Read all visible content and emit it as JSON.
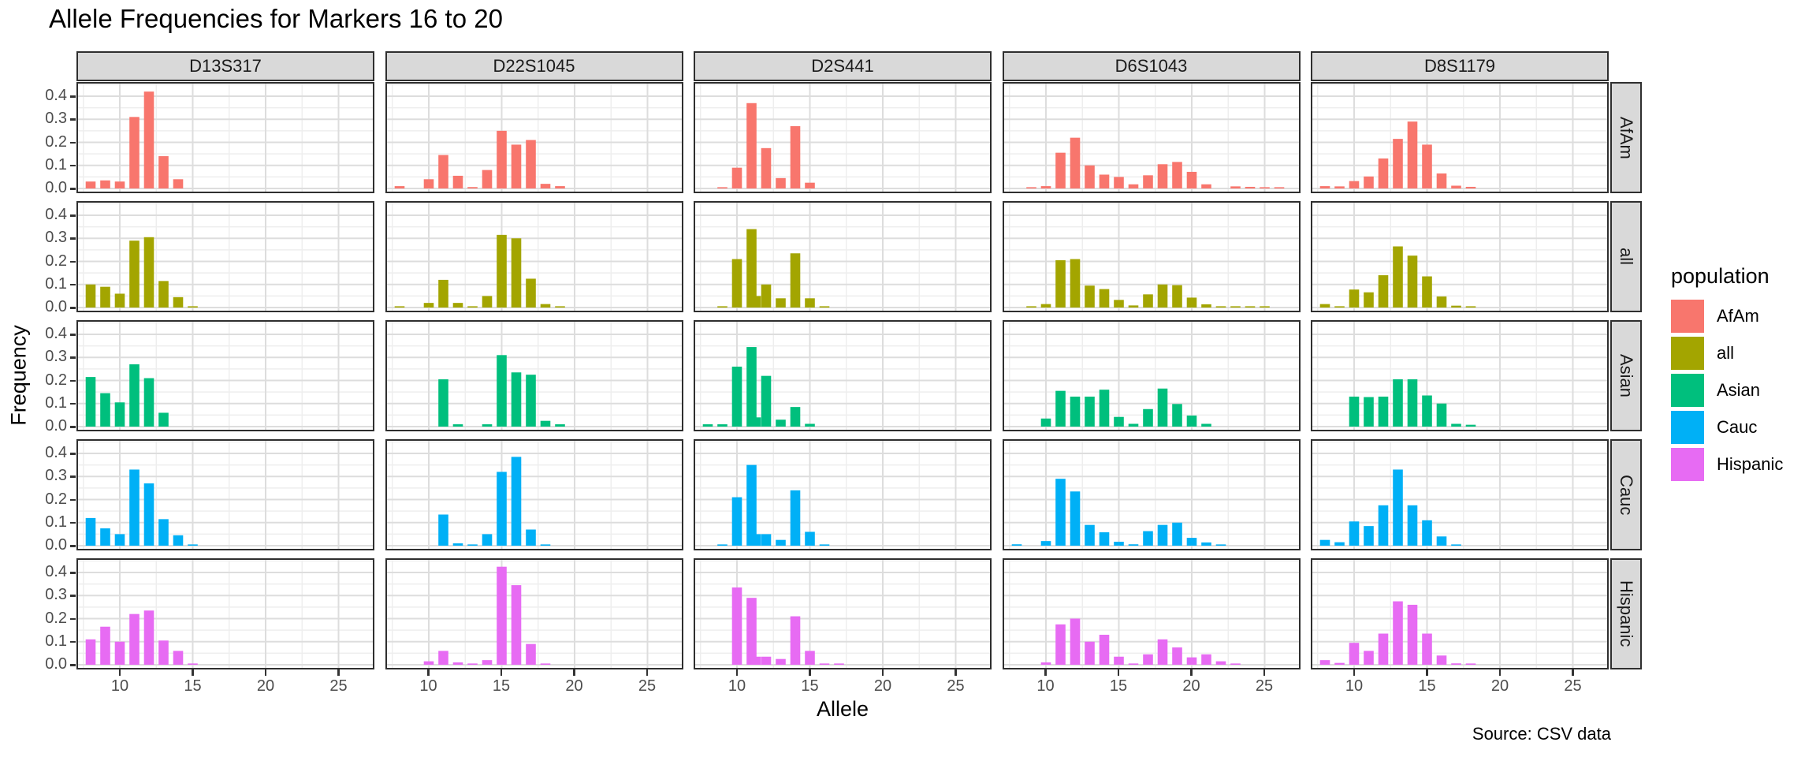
{
  "title": "Allele Frequencies for Markers 16 to 20",
  "axes": {
    "x_title": "Allele",
    "y_title": "Frequency",
    "x_tick_labels": [
      "10",
      "15",
      "20",
      "25"
    ],
    "y_tick_labels": [
      "0.0",
      "0.1",
      "0.2",
      "0.3",
      "0.4"
    ]
  },
  "caption": "Source: CSV data",
  "legend": {
    "title": "population",
    "entries": [
      {
        "label": "AfAm",
        "color": "#F8766D"
      },
      {
        "label": "all",
        "color": "#A3A500"
      },
      {
        "label": "Asian",
        "color": "#00BF7D"
      },
      {
        "label": "Cauc",
        "color": "#00B0F6"
      },
      {
        "label": "Hispanic",
        "color": "#E76BF3"
      }
    ]
  },
  "chart_data": {
    "type": "bar",
    "title": "Allele Frequencies for Markers 16 to 20",
    "xlabel": "Allele",
    "ylabel": "Frequency",
    "caption": "Source: CSV data",
    "facet_columns": [
      "D13S317",
      "D22S1045",
      "D2S441",
      "D6S1043",
      "D8S1179"
    ],
    "facet_rows": [
      "AfAm",
      "all",
      "Asian",
      "Cauc",
      "Hispanic"
    ],
    "x_major_ticks": [
      10,
      15,
      20,
      25
    ],
    "x_minor_ticks": [
      7.5,
      12.5,
      17.5,
      22.5
    ],
    "y_major_ticks": [
      0,
      0.1,
      0.2,
      0.3,
      0.4
    ],
    "y_minor_ticks": [
      0.05,
      0.15,
      0.25,
      0.35,
      0.45
    ],
    "xlim": [
      7.0,
      27.4
    ],
    "ylim": [
      -0.02,
      0.46
    ],
    "grid": true,
    "legend_position": "right",
    "panels": {
      "D13S317": {
        "AfAm": {
          "x": [
            8,
            9,
            10,
            11,
            12,
            13,
            14
          ],
          "y": [
            0.03,
            0.035,
            0.03,
            0.31,
            0.42,
            0.14,
            0.04
          ]
        },
        "all": {
          "x": [
            8,
            9,
            10,
            11,
            12,
            13,
            14,
            15
          ],
          "y": [
            0.1,
            0.09,
            0.06,
            0.29,
            0.305,
            0.115,
            0.045,
            0.005
          ]
        },
        "Asian": {
          "x": [
            8,
            9,
            10,
            11,
            12,
            13
          ],
          "y": [
            0.215,
            0.145,
            0.105,
            0.27,
            0.21,
            0.06
          ]
        },
        "Cauc": {
          "x": [
            8,
            9,
            10,
            11,
            12,
            13,
            14,
            15
          ],
          "y": [
            0.12,
            0.075,
            0.05,
            0.33,
            0.27,
            0.115,
            0.045,
            0.004
          ]
        },
        "Hispanic": {
          "x": [
            8,
            9,
            10,
            11,
            12,
            13,
            14,
            15
          ],
          "y": [
            0.11,
            0.165,
            0.1,
            0.22,
            0.235,
            0.105,
            0.06,
            0.005
          ]
        }
      },
      "D22S1045": {
        "AfAm": {
          "x": [
            8,
            10,
            11,
            12,
            13,
            14,
            15,
            16,
            17,
            18,
            19
          ],
          "y": [
            0.01,
            0.04,
            0.145,
            0.055,
            0.006,
            0.08,
            0.25,
            0.19,
            0.21,
            0.02,
            0.01
          ]
        },
        "all": {
          "x": [
            8,
            10,
            11,
            12,
            13,
            14,
            15,
            16,
            17,
            18,
            19
          ],
          "y": [
            0.005,
            0.02,
            0.12,
            0.02,
            0.005,
            0.05,
            0.315,
            0.3,
            0.125,
            0.015,
            0.005
          ]
        },
        "Asian": {
          "x": [
            11,
            12,
            14,
            15,
            16,
            17,
            18,
            19
          ],
          "y": [
            0.205,
            0.01,
            0.01,
            0.31,
            0.235,
            0.225,
            0.025,
            0.01
          ]
        },
        "Cauc": {
          "x": [
            11,
            12,
            13,
            14,
            15,
            16,
            17,
            18
          ],
          "y": [
            0.135,
            0.01,
            0.005,
            0.05,
            0.32,
            0.385,
            0.07,
            0.005
          ]
        },
        "Hispanic": {
          "x": [
            10,
            11,
            12,
            13,
            14,
            15,
            16,
            17,
            18
          ],
          "y": [
            0.015,
            0.06,
            0.01,
            0.005,
            0.02,
            0.425,
            0.345,
            0.09,
            0.005
          ]
        }
      },
      "D2S441": {
        "AfAm": {
          "x": [
            9,
            10,
            11,
            12,
            13,
            14,
            15
          ],
          "y": [
            0.005,
            0.09,
            0.37,
            0.175,
            0.045,
            0.27,
            0.025
          ]
        },
        "all": {
          "x": [
            9,
            10,
            11,
            11.3,
            12,
            13,
            14,
            15,
            16
          ],
          "y": [
            0.005,
            0.21,
            0.34,
            0.05,
            0.1,
            0.04,
            0.235,
            0.04,
            0.005
          ]
        },
        "Asian": {
          "x": [
            8,
            9,
            10,
            11,
            11.3,
            12,
            13,
            14,
            15
          ],
          "y": [
            0.01,
            0.01,
            0.26,
            0.345,
            0.04,
            0.22,
            0.03,
            0.085,
            0.012
          ]
        },
        "Cauc": {
          "x": [
            9,
            10,
            11,
            11.3,
            12,
            13,
            14,
            15,
            16
          ],
          "y": [
            0.003,
            0.21,
            0.35,
            0.05,
            0.05,
            0.025,
            0.24,
            0.06,
            0.004
          ]
        },
        "Hispanic": {
          "x": [
            10,
            11,
            11.3,
            12,
            13,
            14,
            15,
            16,
            17
          ],
          "y": [
            0.335,
            0.29,
            0.035,
            0.035,
            0.025,
            0.21,
            0.06,
            0.005,
            0.003
          ]
        }
      },
      "D6S1043": {
        "AfAm": {
          "x": [
            9,
            10,
            11,
            12,
            13,
            14,
            15,
            16,
            17,
            18,
            19,
            20,
            21,
            23,
            24,
            25,
            26
          ],
          "y": [
            0.005,
            0.01,
            0.155,
            0.22,
            0.1,
            0.06,
            0.05,
            0.018,
            0.057,
            0.105,
            0.115,
            0.072,
            0.018,
            0.009,
            0.007,
            0.005,
            0.003
          ]
        },
        "all": {
          "x": [
            9,
            10,
            11,
            12,
            13,
            14,
            15,
            16,
            17,
            18,
            19,
            20,
            21,
            22,
            23,
            24,
            25
          ],
          "y": [
            0.003,
            0.015,
            0.205,
            0.21,
            0.095,
            0.08,
            0.033,
            0.009,
            0.057,
            0.1,
            0.097,
            0.043,
            0.014,
            0.005,
            0.004,
            0.003,
            0.002
          ]
        },
        "Asian": {
          "x": [
            10,
            11,
            12,
            13,
            14,
            15,
            16,
            17,
            18,
            19,
            20,
            21
          ],
          "y": [
            0.035,
            0.155,
            0.13,
            0.13,
            0.16,
            0.042,
            0.012,
            0.076,
            0.165,
            0.098,
            0.048,
            0.012
          ]
        },
        "Cauc": {
          "x": [
            8,
            10,
            11,
            12,
            13,
            14,
            15,
            16,
            17,
            18,
            19,
            20,
            21,
            22
          ],
          "y": [
            0.006,
            0.02,
            0.29,
            0.235,
            0.09,
            0.058,
            0.017,
            0.006,
            0.063,
            0.09,
            0.1,
            0.034,
            0.014,
            0.005
          ]
        },
        "Hispanic": {
          "x": [
            10,
            11,
            12,
            13,
            14,
            15,
            16,
            17,
            18,
            19,
            20,
            21,
            22,
            23
          ],
          "y": [
            0.01,
            0.175,
            0.2,
            0.1,
            0.13,
            0.035,
            0.005,
            0.045,
            0.11,
            0.075,
            0.032,
            0.045,
            0.015,
            0.005
          ]
        }
      },
      "D8S1179": {
        "AfAm": {
          "x": [
            8,
            9,
            10,
            11,
            12,
            13,
            14,
            15,
            16,
            17,
            18
          ],
          "y": [
            0.01,
            0.009,
            0.032,
            0.052,
            0.13,
            0.215,
            0.29,
            0.19,
            0.065,
            0.012,
            0.007
          ]
        },
        "all": {
          "x": [
            8,
            9,
            10,
            11,
            12,
            13,
            14,
            15,
            16,
            17,
            18
          ],
          "y": [
            0.015,
            0.005,
            0.078,
            0.066,
            0.14,
            0.265,
            0.225,
            0.135,
            0.048,
            0.008,
            0.004
          ]
        },
        "Asian": {
          "x": [
            10,
            11,
            12,
            13,
            14,
            15,
            16,
            17,
            18
          ],
          "y": [
            0.13,
            0.128,
            0.13,
            0.205,
            0.205,
            0.135,
            0.1,
            0.012,
            0.008
          ]
        },
        "Cauc": {
          "x": [
            8,
            9,
            10,
            11,
            12,
            13,
            14,
            15,
            16,
            17
          ],
          "y": [
            0.025,
            0.015,
            0.105,
            0.085,
            0.175,
            0.33,
            0.175,
            0.11,
            0.04,
            0.005
          ]
        },
        "Hispanic": {
          "x": [
            8,
            9,
            10,
            11,
            12,
            13,
            14,
            15,
            16,
            17,
            18
          ],
          "y": [
            0.02,
            0.008,
            0.095,
            0.06,
            0.135,
            0.275,
            0.26,
            0.135,
            0.04,
            0.006,
            0.004
          ]
        }
      }
    },
    "series_colors": {
      "AfAm": "#F8766D",
      "all": "#A3A500",
      "Asian": "#00BF7D",
      "Cauc": "#00B0F6",
      "Hispanic": "#E76BF3"
    }
  }
}
